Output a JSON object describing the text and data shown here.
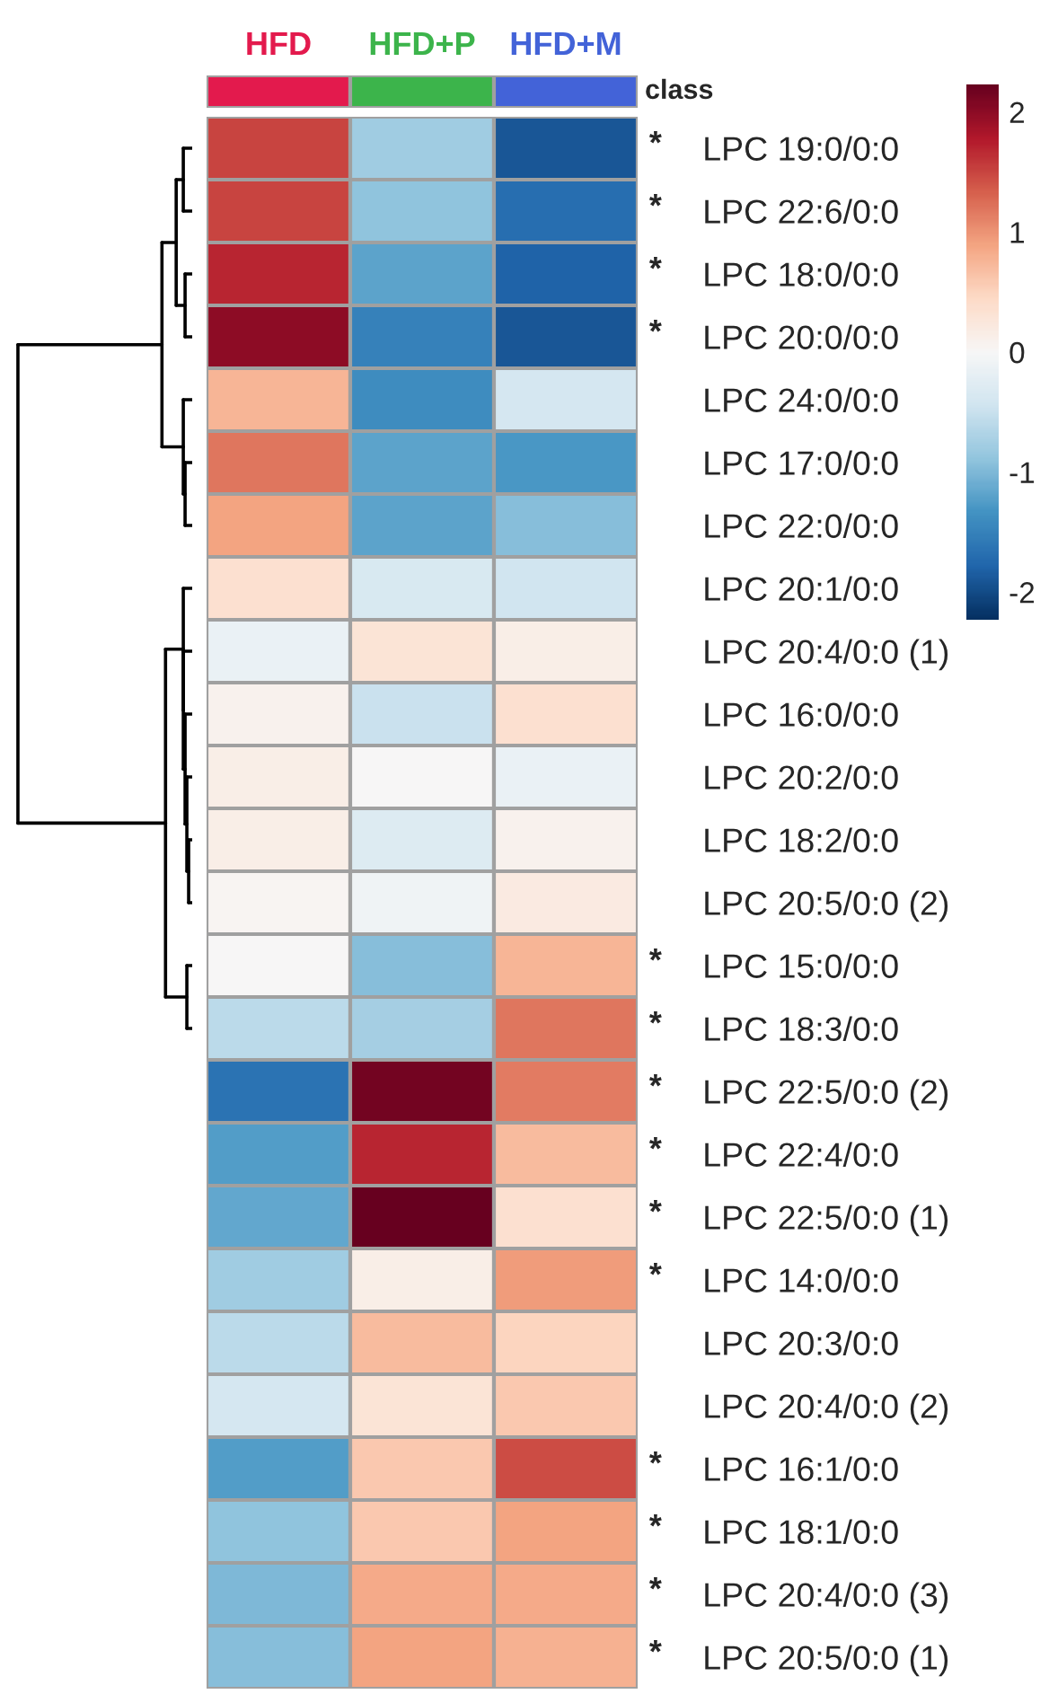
{
  "chart_data": {
    "type": "heatmap",
    "categories": [
      "HFD",
      "HFD+P",
      "HFD+M"
    ],
    "colors": [
      "#e31a4d",
      "#3cb44b",
      "#4363d8"
    ],
    "y_categories": [
      "LPC 19:0/0:0",
      "LPC 22:6/0:0",
      "LPC 18:0/0:0",
      "LPC 20:0/0:0",
      "LPC 24:0/0:0",
      "LPC 17:0/0:0",
      "LPC 22:0/0:0",
      "LPC 20:1/0:0",
      "LPC 20:4/0:0 (1)",
      "LPC 16:0/0:0",
      "LPC 20:2/0:0",
      "LPC 18:2/0:0",
      "LPC 20:5/0:0 (2)",
      "LPC 15:0/0:0",
      "LPC 18:3/0:0",
      "LPC 22:5/0:0 (2)",
      "LPC 22:4/0:0",
      "LPC 22:5/0:0 (1)",
      "LPC 14:0/0:0",
      "LPC 20:3/0:0",
      "LPC 20:4/0:0 (2)",
      "LPC 16:1/0:0",
      "LPC 18:1/0:0",
      "LPC 20:4/0:0 (3)",
      "LPC 20:5/0:0 (1)"
    ],
    "y2_categories": [
      "*",
      "*",
      "*",
      "*",
      null,
      null,
      null,
      null,
      null,
      null,
      null,
      null,
      null,
      "*",
      "*",
      "*",
      "*",
      "*",
      "*",
      null,
      null,
      "*",
      "*",
      "*",
      "*"
    ],
    "cells": [
      [
        1.5,
        -0.8,
        -1.9
      ],
      [
        1.5,
        -0.9,
        -1.7
      ],
      [
        1.7,
        -1.2,
        -1.8
      ],
      [
        2.0,
        -1.5,
        -1.9
      ],
      [
        0.75,
        -1.4,
        -0.4
      ],
      [
        1.2,
        -1.2,
        -1.3
      ],
      [
        0.9,
        -1.2,
        -0.95
      ],
      [
        0.35,
        -0.35,
        -0.45
      ],
      [
        -0.15,
        0.3,
        0.15
      ],
      [
        0.1,
        -0.5,
        0.35
      ],
      [
        0.15,
        0.0,
        -0.15
      ],
      [
        0.15,
        -0.3,
        0.1
      ],
      [
        0.05,
        -0.1,
        0.2
      ],
      [
        0.0,
        -0.95,
        0.75
      ],
      [
        -0.6,
        -0.75,
        1.2
      ],
      [
        -1.65,
        2.15,
        1.15
      ],
      [
        -1.25,
        1.7,
        0.7
      ],
      [
        -1.15,
        2.23,
        0.35
      ],
      [
        -0.8,
        0.15,
        0.95
      ],
      [
        -0.6,
        0.7,
        0.5
      ],
      [
        -0.4,
        0.3,
        0.6
      ],
      [
        -1.25,
        0.6,
        1.45
      ],
      [
        -0.9,
        0.6,
        0.9
      ],
      [
        -1.0,
        0.85,
        0.85
      ],
      [
        -0.95,
        0.9,
        0.8
      ]
    ],
    "clim": [
      -2.23,
      2.23
    ],
    "cticks": [
      -2,
      -1,
      0,
      1,
      2
    ],
    "annotations": [
      "class"
    ]
  }
}
